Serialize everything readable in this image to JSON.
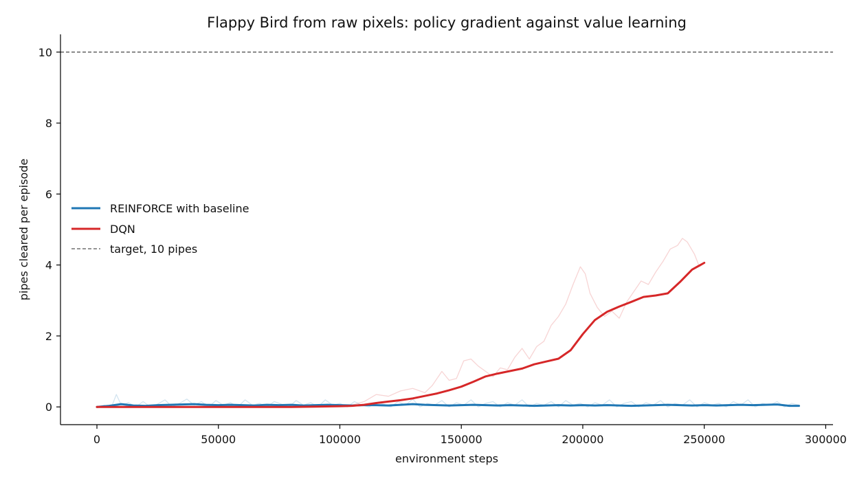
{
  "chart_data": {
    "type": "line",
    "title": "Flappy Bird from raw pixels: policy gradient against value learning",
    "xlabel": "environment steps",
    "ylabel": "pipes cleared per episode",
    "xlim": [
      -15000,
      303000
    ],
    "ylim": [
      -0.5,
      10.5
    ],
    "xticks": [
      0,
      50000,
      100000,
      150000,
      200000,
      250000,
      300000
    ],
    "yticks": [
      0,
      2,
      4,
      6,
      8,
      10
    ],
    "grid": false,
    "legend_position": "center-left",
    "reference_line": {
      "name": "target, 10 pipes",
      "y": 10,
      "color": "#555555",
      "style": "dashed"
    },
    "series": [
      {
        "name": "REINFORCE with baseline",
        "color": "#1f77b4",
        "kind": "smoothed",
        "x": [
          0,
          5000,
          10000,
          15000,
          20000,
          25000,
          30000,
          35000,
          40000,
          45000,
          50000,
          55000,
          60000,
          65000,
          70000,
          75000,
          80000,
          85000,
          90000,
          95000,
          100000,
          105000,
          110000,
          115000,
          120000,
          125000,
          130000,
          135000,
          140000,
          145000,
          150000,
          155000,
          160000,
          165000,
          170000,
          175000,
          180000,
          185000,
          190000,
          195000,
          200000,
          205000,
          210000,
          215000,
          220000,
          225000,
          230000,
          235000,
          240000,
          245000,
          250000,
          255000,
          260000,
          265000,
          270000,
          275000,
          280000,
          285000,
          289000
        ],
        "y": [
          0.0,
          0.03,
          0.08,
          0.04,
          0.03,
          0.05,
          0.06,
          0.07,
          0.08,
          0.06,
          0.05,
          0.06,
          0.05,
          0.04,
          0.06,
          0.05,
          0.06,
          0.04,
          0.05,
          0.06,
          0.05,
          0.04,
          0.05,
          0.05,
          0.04,
          0.06,
          0.08,
          0.06,
          0.05,
          0.04,
          0.05,
          0.06,
          0.05,
          0.04,
          0.05,
          0.04,
          0.03,
          0.04,
          0.05,
          0.04,
          0.05,
          0.04,
          0.05,
          0.04,
          0.03,
          0.04,
          0.05,
          0.06,
          0.05,
          0.04,
          0.05,
          0.04,
          0.05,
          0.06,
          0.05,
          0.06,
          0.07,
          0.03,
          0.03
        ]
      },
      {
        "name": "REINFORCE with baseline (raw)",
        "color": "#1f77b4",
        "kind": "raw",
        "x": [
          0,
          3000,
          6000,
          8000,
          10000,
          13000,
          16000,
          19000,
          22000,
          25000,
          28000,
          31000,
          34000,
          37000,
          40000,
          43000,
          46000,
          49000,
          52000,
          55000,
          58000,
          61000,
          64000,
          67000,
          70000,
          73000,
          76000,
          79000,
          82000,
          85000,
          88000,
          91000,
          94000,
          97000,
          100000,
          103000,
          106000,
          109000,
          112000,
          115000,
          118000,
          121000,
          124000,
          127000,
          130000,
          133000,
          136000,
          139000,
          142000,
          145000,
          148000,
          151000,
          154000,
          157000,
          160000,
          163000,
          166000,
          169000,
          172000,
          175000,
          178000,
          181000,
          184000,
          187000,
          190000,
          193000,
          196000,
          199000,
          202000,
          205000,
          208000,
          211000,
          214000,
          217000,
          220000,
          223000,
          226000,
          229000,
          232000,
          235000,
          238000,
          241000,
          244000,
          247000,
          250000,
          253000,
          256000,
          259000,
          262000,
          265000,
          268000,
          271000,
          274000,
          277000,
          280000,
          283000,
          286000,
          289000
        ],
        "y": [
          0.0,
          0.05,
          0.0,
          0.35,
          0.05,
          0.12,
          0.0,
          0.15,
          0.0,
          0.08,
          0.2,
          0.0,
          0.1,
          0.22,
          0.05,
          0.15,
          0.0,
          0.18,
          0.05,
          0.12,
          0.0,
          0.2,
          0.05,
          0.1,
          0.0,
          0.15,
          0.08,
          0.0,
          0.18,
          0.05,
          0.12,
          0.0,
          0.2,
          0.05,
          0.1,
          0.0,
          0.15,
          0.05,
          0.0,
          0.12,
          0.08,
          0.0,
          0.15,
          0.05,
          0.22,
          0.0,
          0.1,
          0.05,
          0.18,
          0.0,
          0.12,
          0.05,
          0.2,
          0.0,
          0.1,
          0.15,
          0.0,
          0.12,
          0.05,
          0.2,
          0.0,
          0.1,
          0.05,
          0.15,
          0.0,
          0.18,
          0.05,
          0.1,
          0.0,
          0.12,
          0.05,
          0.2,
          0.0,
          0.1,
          0.15,
          0.0,
          0.12,
          0.05,
          0.18,
          0.0,
          0.1,
          0.05,
          0.2,
          0.0,
          0.12,
          0.05,
          0.1,
          0.0,
          0.15,
          0.05,
          0.2,
          0.0,
          0.1,
          0.05,
          0.15,
          0.0,
          0.1,
          0.05
        ]
      },
      {
        "name": "DQN",
        "color": "#d62728",
        "kind": "smoothed",
        "x": [
          0,
          10000,
          20000,
          30000,
          40000,
          50000,
          60000,
          70000,
          80000,
          90000,
          100000,
          105000,
          110000,
          115000,
          120000,
          125000,
          130000,
          135000,
          140000,
          145000,
          150000,
          155000,
          160000,
          165000,
          170000,
          175000,
          180000,
          185000,
          190000,
          195000,
          200000,
          205000,
          210000,
          215000,
          220000,
          225000,
          230000,
          235000,
          240000,
          245000,
          250000
        ],
        "y": [
          0.0,
          0.0,
          0.0,
          0.0,
          0.0,
          0.0,
          0.0,
          0.0,
          0.0,
          0.01,
          0.02,
          0.03,
          0.06,
          0.11,
          0.15,
          0.19,
          0.24,
          0.31,
          0.38,
          0.47,
          0.57,
          0.71,
          0.86,
          0.94,
          1.01,
          1.08,
          1.2,
          1.28,
          1.36,
          1.6,
          2.05,
          2.45,
          2.68,
          2.83,
          2.96,
          3.1,
          3.14,
          3.2,
          3.52,
          3.87,
          4.06
        ]
      },
      {
        "name": "DQN (raw)",
        "color": "#d62728",
        "kind": "raw",
        "x": [
          0,
          20000,
          40000,
          60000,
          80000,
          100000,
          105000,
          110000,
          115000,
          120000,
          125000,
          130000,
          135000,
          138000,
          142000,
          145000,
          148000,
          151000,
          154000,
          157000,
          160000,
          163000,
          166000,
          169000,
          172000,
          175000,
          178000,
          181000,
          184000,
          187000,
          190000,
          193000,
          196000,
          199000,
          201000,
          203000,
          206000,
          209000,
          212000,
          215000,
          218000,
          221000,
          224000,
          227000,
          230000,
          233000,
          236000,
          239000,
          241000,
          243000,
          246000,
          248000,
          250000
        ],
        "y": [
          0.0,
          0.0,
          0.0,
          0.0,
          0.0,
          0.02,
          0.05,
          0.15,
          0.35,
          0.3,
          0.45,
          0.52,
          0.4,
          0.6,
          1.0,
          0.75,
          0.8,
          1.3,
          1.35,
          1.15,
          1.0,
          0.85,
          1.1,
          1.05,
          1.4,
          1.65,
          1.35,
          1.7,
          1.85,
          2.3,
          2.55,
          2.9,
          3.45,
          3.95,
          3.75,
          3.2,
          2.8,
          2.55,
          2.7,
          2.5,
          2.95,
          3.25,
          3.55,
          3.45,
          3.8,
          4.1,
          4.45,
          4.55,
          4.75,
          4.65,
          4.3,
          3.95,
          4.05
        ]
      }
    ]
  }
}
